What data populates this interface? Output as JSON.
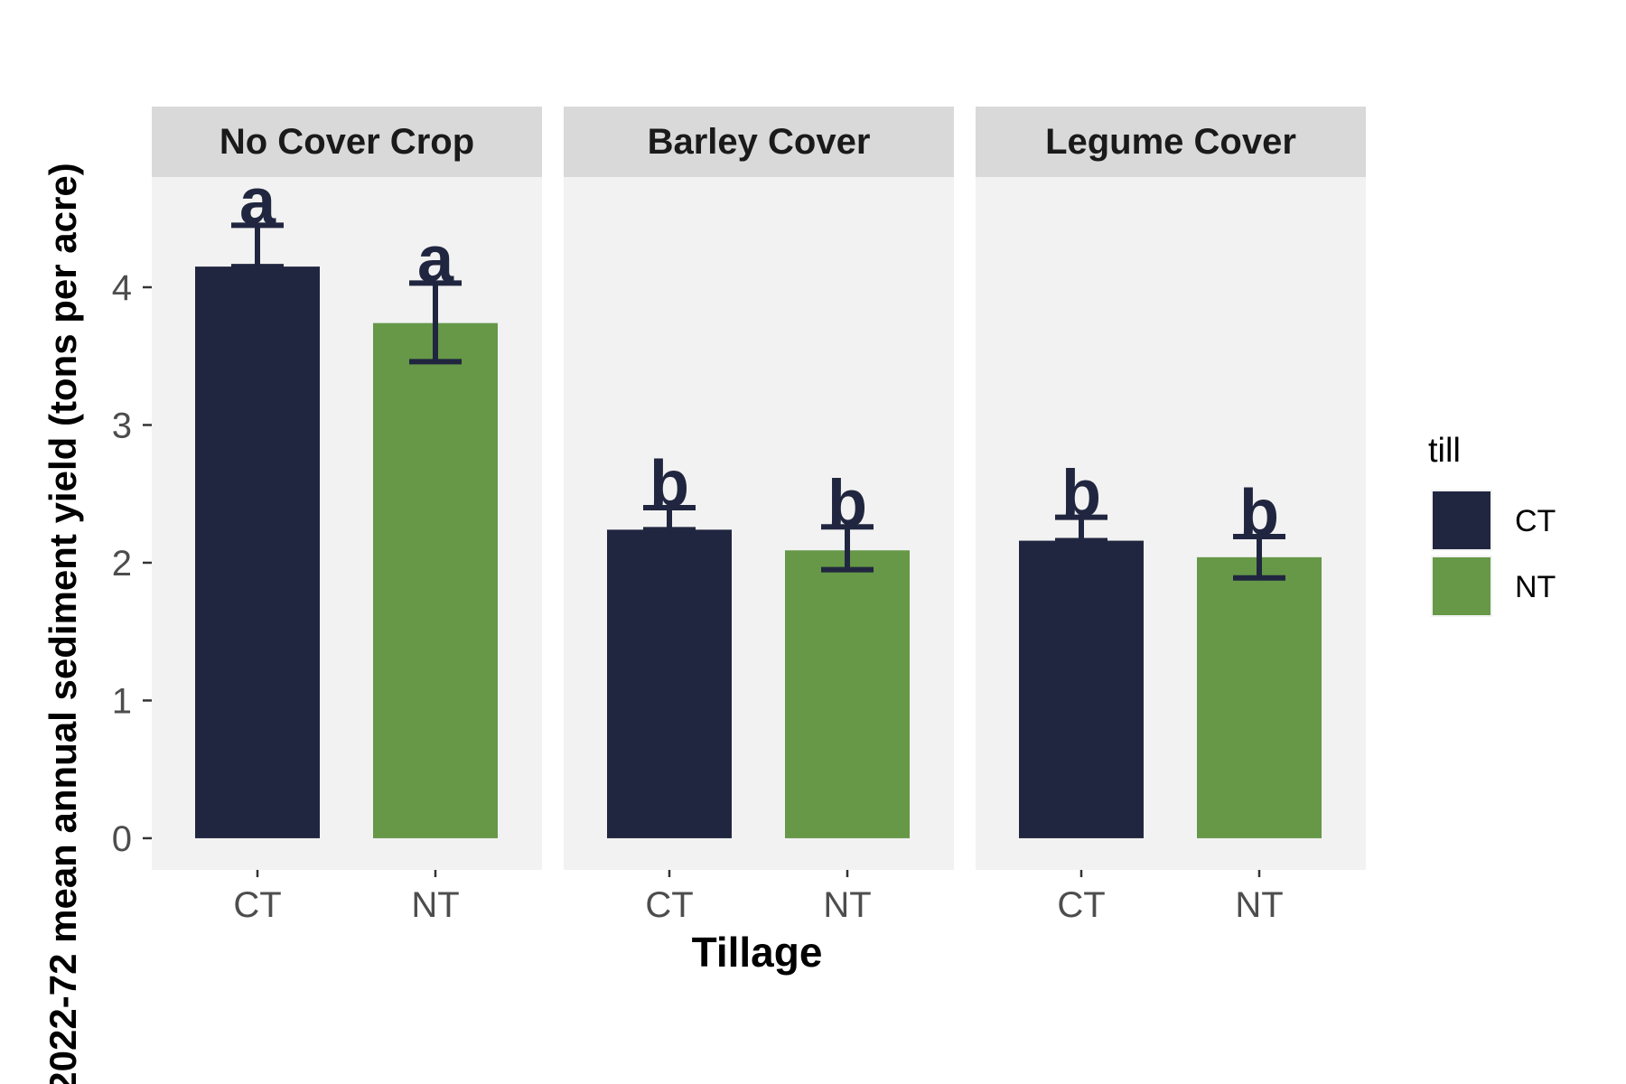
{
  "chart_data": {
    "type": "bar",
    "ylabel": "2022-72 mean annual sediment yield (tons per acre)",
    "xlabel": "Tillage",
    "ylim": [
      -0.23,
      4.8
    ],
    "y_ticks": [
      0,
      1,
      2,
      3,
      4
    ],
    "grid": false,
    "legend": {
      "title": "till",
      "position": "right",
      "entries": [
        {
          "label": "CT",
          "color": "#212640"
        },
        {
          "label": "NT",
          "color": "#669848"
        }
      ]
    },
    "panels": [
      {
        "title": "No Cover Crop",
        "categories": [
          "CT",
          "NT"
        ],
        "values": [
          4.15,
          3.74
        ],
        "error_low": [
          4.15,
          3.46
        ],
        "error_high": [
          4.45,
          4.03
        ],
        "letters": [
          "a",
          "a"
        ]
      },
      {
        "title": "Barley Cover",
        "categories": [
          "CT",
          "NT"
        ],
        "values": [
          2.24,
          2.09
        ],
        "error_low": [
          2.24,
          1.95
        ],
        "error_high": [
          2.4,
          2.26
        ],
        "letters": [
          "b",
          "b"
        ]
      },
      {
        "title": "Legume Cover",
        "categories": [
          "CT",
          "NT"
        ],
        "values": [
          2.16,
          2.04
        ],
        "error_low": [
          2.16,
          1.89
        ],
        "error_high": [
          2.33,
          2.19
        ],
        "letters": [
          "b",
          "b"
        ]
      }
    ]
  },
  "colors": {
    "panel_bg": "#f2f2f2",
    "strip_bg": "#d9d9d9",
    "error_bar": "#212640",
    "letter": "#212640",
    "tick_text": "#4d4d4d"
  }
}
